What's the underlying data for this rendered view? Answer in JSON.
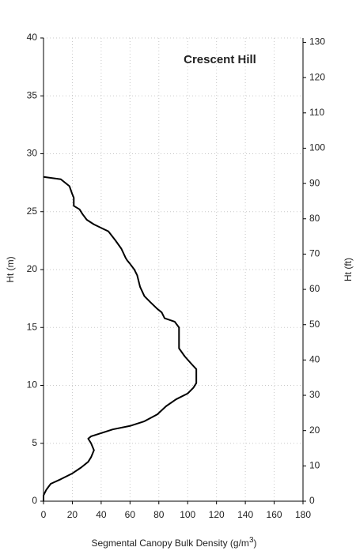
{
  "chart_data": {
    "type": "line",
    "title": "Crescent Hill",
    "xlabel": [
      "Segmental Canopy Bulk Density (g/m",
      "3",
      ")"
    ],
    "ylabel": "Ht (m)",
    "y2label": "Ht (ft)",
    "x": [
      0,
      12,
      18,
      20,
      21,
      21,
      25,
      27,
      30,
      35,
      45,
      50,
      54,
      57,
      58,
      60,
      63,
      65,
      67,
      70,
      74,
      79,
      82,
      84,
      91,
      94,
      94,
      98,
      103,
      106,
      106,
      104,
      100,
      92,
      85,
      79,
      70,
      60,
      48,
      38,
      33,
      31,
      33,
      35,
      33,
      31,
      26,
      20,
      12,
      5,
      2,
      0,
      0
    ],
    "series": [
      {
        "name": "Crescent Hill",
        "color": "#000000",
        "values": [
          28,
          27.8,
          27.2,
          26.5,
          26.2,
          25.5,
          25.2,
          24.8,
          24.3,
          23.9,
          23.3,
          22.5,
          21.8,
          21,
          20.8,
          20.5,
          20,
          19.5,
          18.5,
          17.7,
          17.2,
          16.6,
          16.3,
          15.8,
          15.5,
          15,
          13.2,
          12.5,
          11.8,
          11.4,
          10.2,
          9.8,
          9.3,
          8.8,
          8.2,
          7.5,
          6.9,
          6.5,
          6.2,
          5.8,
          5.6,
          5.4,
          5.0,
          4.4,
          3.8,
          3.4,
          2.9,
          2.4,
          1.9,
          1.5,
          1.0,
          0.5,
          0
        ]
      }
    ],
    "xlim": [
      0,
      180
    ],
    "xticks": [
      0,
      20,
      40,
      60,
      80,
      100,
      120,
      140,
      160,
      180
    ],
    "ylim": [
      0,
      40
    ],
    "yticks": [
      0,
      5,
      10,
      15,
      20,
      25,
      30,
      35,
      40
    ],
    "y2lim": [
      0,
      131.23
    ],
    "y2ticks": [
      0,
      10,
      20,
      30,
      40,
      50,
      60,
      70,
      80,
      90,
      100,
      110,
      120,
      130
    ],
    "grid": true
  }
}
